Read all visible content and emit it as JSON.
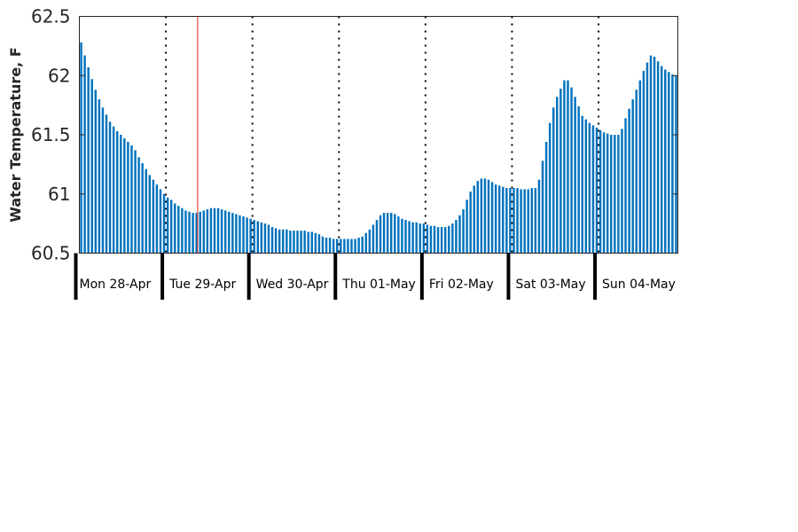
{
  "chart_data": {
    "type": "bar",
    "title": "",
    "xlabel": "",
    "ylabel": "Water Temperature, F",
    "ylim": [
      60.5,
      62.5
    ],
    "yticks": [
      60.5,
      61,
      61.5,
      62,
      62.5
    ],
    "ytick_labels": [
      "60.5",
      "61",
      "61.5",
      "62",
      "62.5"
    ],
    "grid": false,
    "legend": "none",
    "bar_color": "#0072BD",
    "marker_color": "#E8291C",
    "day_labels": [
      "Mon 28-Apr",
      "Tue 29-Apr",
      "Wed 30-Apr",
      "Thu 01-May",
      "Fri 02-May",
      "Sat 03-May",
      "Sun 04-May"
    ],
    "samples_per_day": 24,
    "current_time_marker_hour": 33,
    "values": [
      62.28,
      62.17,
      62.07,
      61.97,
      61.88,
      61.8,
      61.73,
      61.67,
      61.61,
      61.57,
      61.53,
      61.5,
      61.47,
      61.44,
      61.41,
      61.37,
      61.31,
      61.26,
      61.21,
      61.16,
      61.12,
      61.08,
      61.04,
      61.0,
      60.97,
      60.95,
      60.92,
      60.9,
      60.88,
      60.86,
      60.85,
      60.84,
      60.84,
      60.85,
      60.86,
      60.87,
      60.88,
      60.88,
      60.88,
      60.87,
      60.86,
      60.85,
      60.84,
      60.83,
      60.82,
      60.81,
      60.8,
      60.79,
      60.78,
      60.77,
      60.76,
      60.75,
      60.74,
      60.72,
      60.71,
      60.7,
      60.7,
      60.7,
      60.69,
      60.69,
      60.69,
      60.69,
      60.69,
      60.68,
      60.68,
      60.67,
      60.66,
      60.64,
      60.63,
      60.63,
      60.62,
      60.62,
      60.62,
      60.62,
      60.62,
      60.62,
      60.62,
      60.63,
      60.64,
      60.67,
      60.7,
      60.74,
      60.78,
      60.82,
      60.84,
      60.84,
      60.84,
      60.83,
      60.81,
      60.79,
      60.78,
      60.77,
      60.76,
      60.76,
      60.75,
      60.75,
      60.74,
      60.73,
      60.73,
      60.72,
      60.72,
      60.72,
      60.73,
      60.75,
      60.78,
      60.82,
      60.87,
      60.95,
      61.02,
      61.07,
      61.11,
      61.13,
      61.13,
      61.12,
      61.1,
      61.08,
      61.07,
      61.06,
      61.05,
      61.05,
      61.05,
      61.05,
      61.04,
      61.04,
      61.04,
      61.05,
      61.05,
      61.12,
      61.28,
      61.44,
      61.6,
      61.73,
      61.82,
      61.89,
      61.96,
      61.96,
      61.9,
      61.82,
      61.74,
      61.66,
      61.63,
      61.6,
      61.58,
      61.56,
      61.54,
      61.52,
      61.51,
      61.5,
      61.5,
      61.5,
      61.55,
      61.64,
      61.72,
      61.8,
      61.88,
      61.96,
      62.04,
      62.11,
      62.17,
      62.16,
      62.12,
      62.08,
      62.05,
      62.03,
      62.01,
      62.0
    ]
  }
}
